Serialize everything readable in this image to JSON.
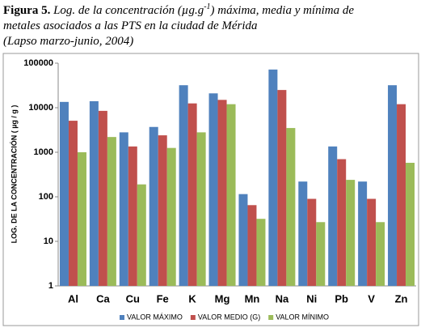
{
  "caption": {
    "label": "Figura 5.",
    "line1": "Log. de la concentración (µg.g",
    "superscript": "-1",
    "line1_end": ") máxima, media y mínima de",
    "line2": "metales asociados a las PTS en la ciudad de Mérida",
    "line3": "(Lapso marzo-junio, 2004)"
  },
  "chart_data": {
    "type": "bar",
    "y_label": "LOG. DE LA CONCENTRACIÓN ( µg / g )",
    "log": true,
    "categories": [
      "Al",
      "Ca",
      "Cu",
      "Fe",
      "K",
      "Mg",
      "Mn",
      "Na",
      "Ni",
      "Pb",
      "V",
      "Zn"
    ],
    "series": [
      {
        "name": "VALOR MÁXIMO",
        "color": "#4f81bd",
        "values": [
          13500,
          14000,
          2800,
          3700,
          32000,
          21000,
          115,
          72000,
          220,
          1350,
          220,
          32000
        ]
      },
      {
        "name": "VALOR MEDIO (G)",
        "color": "#c0504d",
        "values": [
          5100,
          8500,
          1350,
          2400,
          12500,
          15000,
          65,
          25000,
          90,
          700,
          90,
          12000
        ]
      },
      {
        "name": "VALOR MÍNIMO",
        "color": "#9bbb59",
        "values": [
          1000,
          2200,
          190,
          1250,
          2800,
          12000,
          32,
          3500,
          27,
          240,
          27,
          580
        ]
      }
    ],
    "ylim": [
      1,
      100000
    ],
    "yticks": [
      1,
      10,
      100,
      1000,
      10000,
      100000
    ],
    "grid": false,
    "legend": "bottom"
  }
}
